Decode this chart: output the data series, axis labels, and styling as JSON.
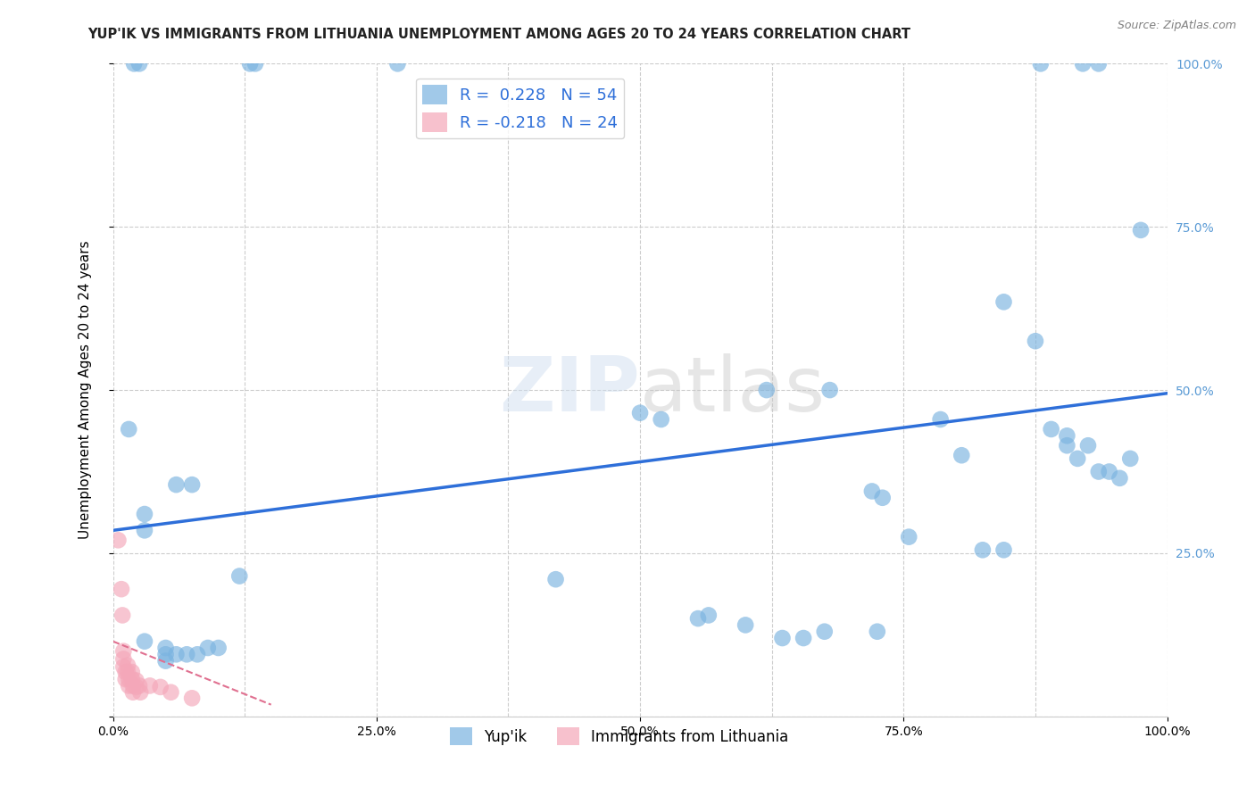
{
  "title": "YUP'IK VS IMMIGRANTS FROM LITHUANIA UNEMPLOYMENT AMONG AGES 20 TO 24 YEARS CORRELATION CHART",
  "source": "Source: ZipAtlas.com",
  "ylabel": "Unemployment Among Ages 20 to 24 years",
  "watermark": "ZIPatlas",
  "xlim": [
    0.0,
    1.0
  ],
  "ylim": [
    0.0,
    1.0
  ],
  "xtick_labels": [
    "0.0%",
    "",
    "25.0%",
    "",
    "50.0%",
    "",
    "75.0%",
    "",
    "100.0%"
  ],
  "xtick_vals": [
    0.0,
    0.125,
    0.25,
    0.375,
    0.5,
    0.625,
    0.75,
    0.875,
    1.0
  ],
  "grid_ytick_vals": [
    0.0,
    0.25,
    0.5,
    0.75,
    1.0
  ],
  "grid_ytick_labels": [
    "0.0%",
    "25.0%",
    "50.0%",
    "75.0%",
    "100.0%"
  ],
  "right_ytick_vals": [
    0.25,
    0.5,
    0.75,
    1.0
  ],
  "right_ytick_labels": [
    "25.0%",
    "50.0%",
    "75.0%",
    "100.0%"
  ],
  "blue_color": "#7ab3e0",
  "pink_color": "#f4a7b9",
  "line_blue": "#2E6FD9",
  "line_pink": "#E07090",
  "blue_scatter": [
    [
      0.02,
      1.0
    ],
    [
      0.025,
      1.0
    ],
    [
      0.13,
      1.0
    ],
    [
      0.135,
      1.0
    ],
    [
      0.27,
      1.0
    ],
    [
      0.88,
      1.0
    ],
    [
      0.92,
      1.0
    ],
    [
      0.935,
      1.0
    ],
    [
      0.015,
      0.44
    ],
    [
      0.06,
      0.355
    ],
    [
      0.075,
      0.355
    ],
    [
      0.03,
      0.31
    ],
    [
      0.03,
      0.285
    ],
    [
      0.5,
      0.465
    ],
    [
      0.52,
      0.455
    ],
    [
      0.62,
      0.5
    ],
    [
      0.68,
      0.5
    ],
    [
      0.72,
      0.345
    ],
    [
      0.73,
      0.335
    ],
    [
      0.755,
      0.275
    ],
    [
      0.785,
      0.455
    ],
    [
      0.805,
      0.4
    ],
    [
      0.825,
      0.255
    ],
    [
      0.845,
      0.255
    ],
    [
      0.845,
      0.635
    ],
    [
      0.875,
      0.575
    ],
    [
      0.89,
      0.44
    ],
    [
      0.905,
      0.43
    ],
    [
      0.905,
      0.415
    ],
    [
      0.915,
      0.395
    ],
    [
      0.925,
      0.415
    ],
    [
      0.935,
      0.375
    ],
    [
      0.945,
      0.375
    ],
    [
      0.955,
      0.365
    ],
    [
      0.965,
      0.395
    ],
    [
      0.975,
      0.745
    ],
    [
      0.6,
      0.14
    ],
    [
      0.635,
      0.12
    ],
    [
      0.655,
      0.12
    ],
    [
      0.675,
      0.13
    ],
    [
      0.725,
      0.13
    ],
    [
      0.555,
      0.15
    ],
    [
      0.565,
      0.155
    ],
    [
      0.03,
      0.115
    ],
    [
      0.05,
      0.105
    ],
    [
      0.05,
      0.095
    ],
    [
      0.05,
      0.085
    ],
    [
      0.06,
      0.095
    ],
    [
      0.07,
      0.095
    ],
    [
      0.08,
      0.095
    ],
    [
      0.09,
      0.105
    ],
    [
      0.1,
      0.105
    ],
    [
      0.12,
      0.215
    ],
    [
      0.42,
      0.21
    ]
  ],
  "pink_scatter": [
    [
      0.005,
      0.27
    ],
    [
      0.008,
      0.195
    ],
    [
      0.009,
      0.155
    ],
    [
      0.01,
      0.1
    ],
    [
      0.01,
      0.088
    ],
    [
      0.01,
      0.076
    ],
    [
      0.012,
      0.068
    ],
    [
      0.012,
      0.057
    ],
    [
      0.014,
      0.078
    ],
    [
      0.014,
      0.068
    ],
    [
      0.015,
      0.057
    ],
    [
      0.015,
      0.047
    ],
    [
      0.018,
      0.068
    ],
    [
      0.018,
      0.057
    ],
    [
      0.019,
      0.047
    ],
    [
      0.019,
      0.037
    ],
    [
      0.022,
      0.055
    ],
    [
      0.022,
      0.045
    ],
    [
      0.025,
      0.047
    ],
    [
      0.026,
      0.037
    ],
    [
      0.035,
      0.047
    ],
    [
      0.045,
      0.045
    ],
    [
      0.055,
      0.037
    ],
    [
      0.075,
      0.028
    ]
  ],
  "blue_line_x": [
    0.0,
    1.0
  ],
  "blue_line_y": [
    0.285,
    0.495
  ],
  "pink_line_x": [
    0.0,
    0.15
  ],
  "pink_line_y": [
    0.115,
    0.018
  ],
  "grid_color": "#cccccc",
  "background_color": "#ffffff",
  "right_label_color": "#5b9bd5"
}
